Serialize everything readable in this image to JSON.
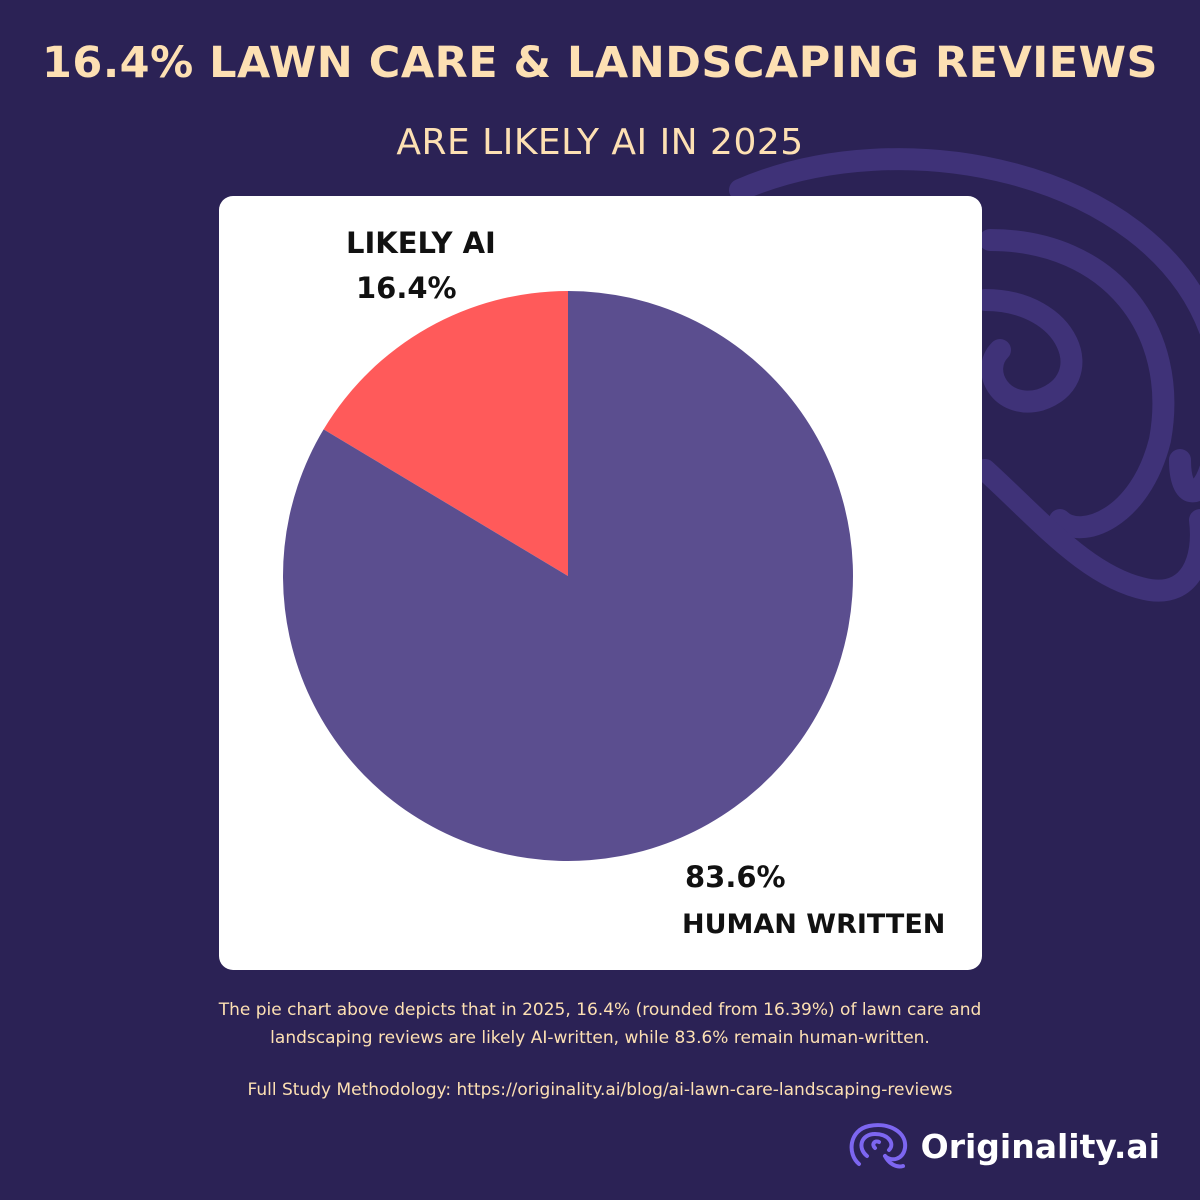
{
  "title": "16.4% LAWN CARE & LANDSCAPING REVIEWS",
  "subtitle": "ARE LIKELY AI IN 2025",
  "caption_line1": "The pie chart above depicts that in 2025, 16.4% (rounded from 16.39%) of lawn care and",
  "caption_line2": "landscaping reviews are likely AI-written, while 83.6% remain human-written.",
  "methodology": "Full Study Methodology: https://originality.ai/blog/ai-lawn-care-landscaping-reviews",
  "brand": {
    "name": "Originality.ai",
    "icon": "brain-logo-icon"
  },
  "colors": {
    "background": "#2b2255",
    "accent_text": "#fde0b3",
    "ai_slice": "#ff5a5a",
    "human_slice": "#5b4e8f"
  },
  "chart_data": {
    "type": "pie",
    "title": "",
    "slices": [
      {
        "label": "LIKELY AI",
        "value": 16.4,
        "display": "16.4%",
        "color": "#ff5a5a"
      },
      {
        "label": "HUMAN WRITTEN",
        "value": 83.6,
        "display": "83.6%",
        "color": "#5b4e8f"
      }
    ]
  }
}
